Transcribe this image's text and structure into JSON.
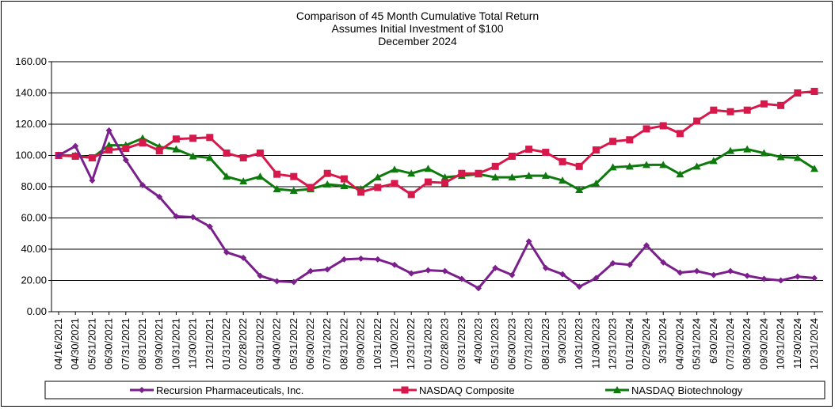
{
  "chart_data": {
    "type": "line",
    "title": [
      "Comparison of 45 Month Cumulative Total Return",
      "Assumes Initial Investment of $100",
      "December 2024"
    ],
    "xlabel": "",
    "ylabel": "",
    "ylim": [
      0,
      160
    ],
    "yticks": [
      "0.00",
      "20.00",
      "40.00",
      "60.00",
      "80.00",
      "100.00",
      "120.00",
      "140.00",
      "160.00"
    ],
    "grid": true,
    "legend_position": "bottom",
    "categories": [
      "04/16/2021",
      "04/30/2021",
      "05/31/2021",
      "06/30/2021",
      "07/31/2021",
      "08/31/2021",
      "09/30/2021",
      "10/31/2021",
      "11/30/2021",
      "12/31/2021",
      "01/31/2022",
      "02/28/2022",
      "03/31/2022",
      "04/30/2022",
      "05/31/2022",
      "06/30/2022",
      "07/31/2022",
      "08/31/2022",
      "09/30/2022",
      "10/31/2022",
      "11/30/2022",
      "12/31/2022",
      "01/31/2023",
      "02/28/2023",
      "03/31/2023",
      "4/30/2023",
      "05/31/2023",
      "06/30/2023",
      "07/31/2023",
      "08/31/2023",
      "9/30/2023",
      "10/31/2023",
      "11/30/2023",
      "12/31/2023",
      "01/31/2024",
      "02/29/2024",
      "3/31/2024",
      "04/30/2024",
      "05/31/2024",
      "6/30/2024",
      "07/31/2024",
      "08/30/2024",
      "09/30/2024",
      "10/31/2024",
      "11/30/2024",
      "12/31/2024"
    ],
    "series": [
      {
        "name": "Recursion Pharmaceuticals, Inc.",
        "color": "#7B1F8C",
        "marker": "diamond",
        "values": [
          100,
          106,
          84,
          116,
          97,
          81,
          73.5,
          61,
          60.5,
          54.5,
          38,
          34.5,
          23,
          19.5,
          19,
          26,
          27,
          33.5,
          34,
          33.5,
          30,
          24.5,
          26.5,
          26,
          21,
          15,
          28,
          23.5,
          45,
          28,
          24,
          16,
          21.5,
          31,
          30,
          42.5,
          31.5,
          25,
          26,
          23.5,
          26,
          23,
          21,
          20,
          22.5,
          21.5
        ]
      },
      {
        "name": "NASDAQ Composite",
        "color": "#D6184B",
        "marker": "square",
        "values": [
          100,
          99.5,
          98.5,
          103.5,
          104.5,
          108,
          103,
          110.5,
          111,
          111.5,
          101.5,
          98.5,
          101.5,
          88,
          86.5,
          79.5,
          88.5,
          85,
          76.5,
          79.5,
          82,
          75,
          83,
          82.5,
          88.5,
          88.5,
          93,
          99.5,
          104,
          102,
          96,
          93,
          103.5,
          109,
          110,
          117,
          119,
          114,
          122,
          129,
          128,
          129,
          133,
          132,
          140,
          141
        ]
      },
      {
        "name": "NASDAQ Biotechnology",
        "color": "#0E7A0D",
        "marker": "triangle",
        "values": [
          100,
          100,
          98.5,
          106.5,
          106.5,
          111,
          105.5,
          104,
          99.5,
          98.5,
          86.5,
          83.5,
          86.5,
          78.5,
          77.5,
          78.5,
          81.5,
          80.5,
          78.5,
          86,
          91,
          88.5,
          91.5,
          86,
          87,
          88,
          86,
          86,
          87,
          87,
          84,
          78,
          82,
          92.5,
          93,
          94,
          94,
          88,
          93,
          96.5,
          103,
          104,
          101.5,
          99,
          98.5,
          91.5
        ]
      }
    ]
  }
}
